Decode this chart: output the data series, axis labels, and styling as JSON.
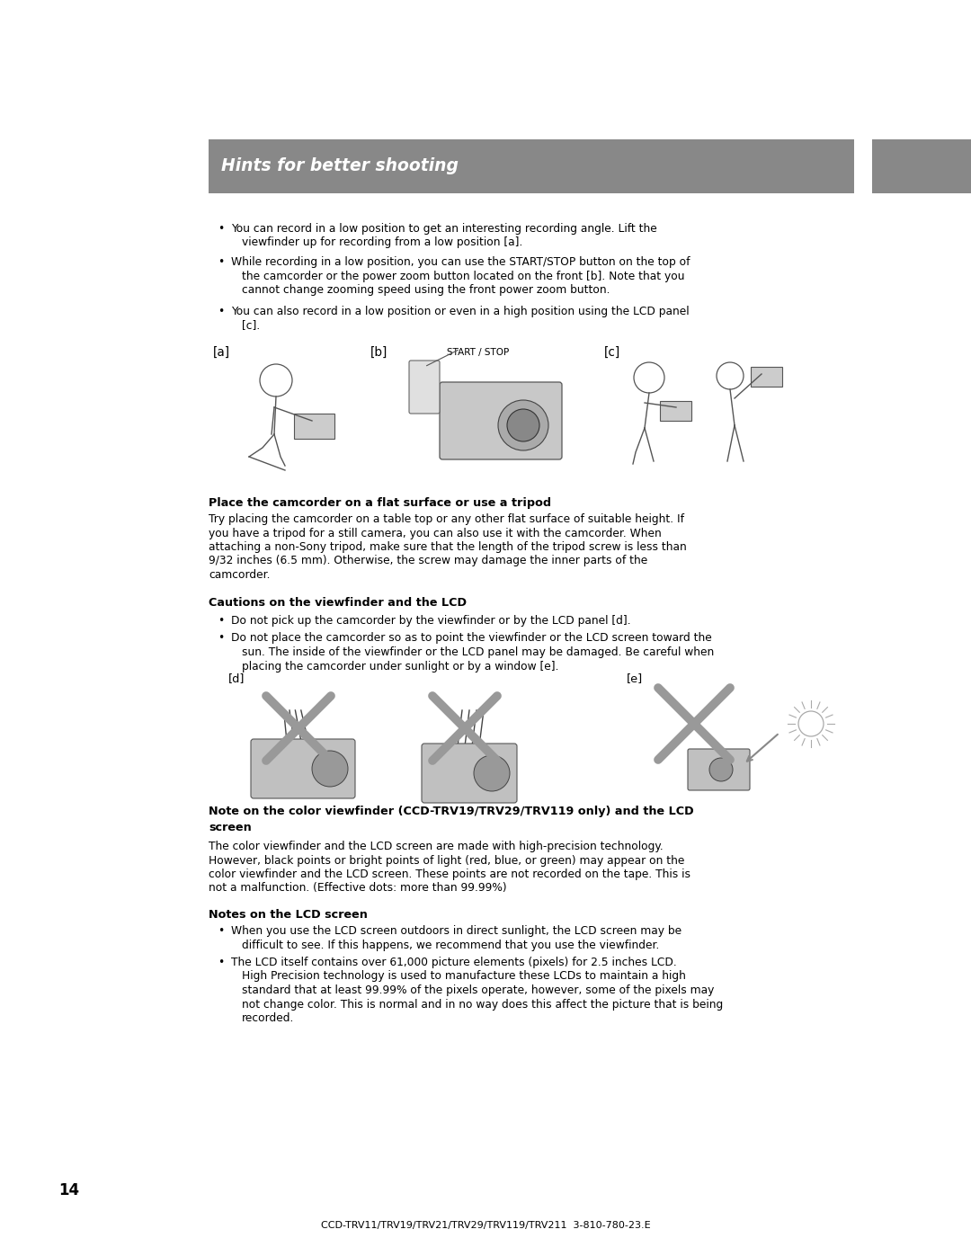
{
  "page_bg": "#ffffff",
  "header_bg": "#888888",
  "header_text": "Hints for better shooting",
  "header_text_color": "#ffffff",
  "right_tab_bg": "#888888",
  "body_text_color": "#000000",
  "bullet1_line1": "You can record in a low position to get an interesting recording angle. Lift the",
  "bullet1_line2": "viewfinder up for recording from a low position [a].",
  "bullet2_line1": "While recording in a low position, you can use the START/STOP button on the top of",
  "bullet2_line2": "the camcorder or the power zoom button located on the front [b]. Note that you",
  "bullet2_line3": "cannot change zooming speed using the front power zoom button.",
  "bullet3_line1": "You can also record in a low position or even in a high position using the LCD panel",
  "bullet3_line2": "[c].",
  "label_a": "[a]",
  "label_b": "[b]",
  "label_c": "[c]",
  "start_stop_label": "START / STOP",
  "section2_title": "Place the camcorder on a flat surface or use a tripod",
  "section2_line1": "Try placing the camcorder on a table top or any other flat surface of suitable height. If",
  "section2_line2": "you have a tripod for a still camera, you can also use it with the camcorder. When",
  "section2_line3": "attaching a non-Sony tripod, make sure that the length of the tripod screw is less than",
  "section2_line4": "9/32 inches (6.5 mm). Otherwise, the screw may damage the inner parts of the",
  "section2_line5": "camcorder.",
  "section3_title": "Cautions on the viewfinder and the LCD",
  "section3_b1": "Do not pick up the camcorder by the viewfinder or by the LCD panel [d].",
  "section3_b2_line1": "Do not place the camcorder so as to point the viewfinder or the LCD screen toward the",
  "section3_b2_line2": "sun. The inside of the viewfinder or the LCD panel may be damaged. Be careful when",
  "section3_b2_line3": "placing the camcorder under sunlight or by a window [e].",
  "label_d": "[d]",
  "label_e": "[e]",
  "section4_title1": "Note on the color viewfinder (CCD-TRV19/TRV29/TRV119 only) and the LCD",
  "section4_title2": "screen",
  "section4_line1": "The color viewfinder and the LCD screen are made with high-precision technology.",
  "section4_line2": "However, black points or bright points of light (red, blue, or green) may appear on the",
  "section4_line3": "color viewfinder and the LCD screen. These points are not recorded on the tape. This is",
  "section4_line4": "not a malfunction. (Effective dots: more than 99.99%)",
  "section5_title": "Notes on the LCD screen",
  "section5_b1_line1": "When you use the LCD screen outdoors in direct sunlight, the LCD screen may be",
  "section5_b1_line2": "difficult to see. If this happens, we recommend that you use the viewfinder.",
  "section5_b2_line1": "The LCD itself contains over 61,000 picture elements (pixels) for 2.5 inches LCD.",
  "section5_b2_line2": "High Precision technology is used to manufacture these LCDs to maintain a high",
  "section5_b2_line3": "standard that at least 99.99% of the pixels operate, however, some of the pixels may",
  "section5_b2_line4": "not change color. This is normal and in no way does this affect the picture that is being",
  "section5_b2_line5": "recorded.",
  "page_number": "14",
  "footer_text": "CCD-TRV11/TRV19/TRV21/TRV29/TRV119/TRV211  3-810-780-23.E",
  "gray_x_color": "#999999",
  "illus_gray": "#bbbbbb"
}
